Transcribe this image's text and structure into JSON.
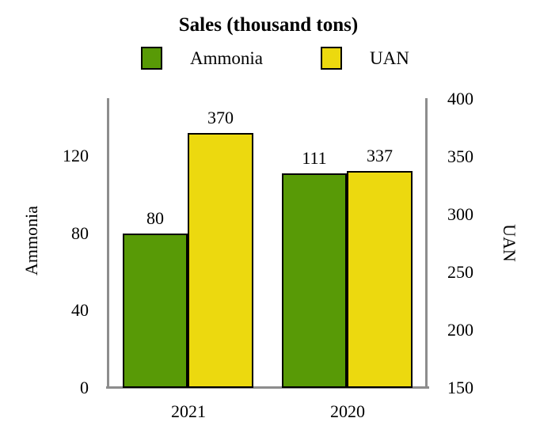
{
  "chart_data": {
    "type": "bar",
    "title": "Sales (thousand tons)",
    "categories": [
      "2021",
      "2020"
    ],
    "series": [
      {
        "name": "Ammonia",
        "axis": "left",
        "color": "#589a06",
        "values": [
          80,
          111
        ]
      },
      {
        "name": "UAN",
        "axis": "right",
        "color": "#ecd90f",
        "values": [
          370,
          337
        ]
      }
    ],
    "left_axis": {
      "label": "Ammonia",
      "range": [
        0,
        150
      ],
      "ticks": [
        0,
        40,
        80,
        120
      ]
    },
    "right_axis": {
      "label": "UAN",
      "range": [
        150,
        400
      ],
      "ticks": [
        150,
        200,
        250,
        300,
        350,
        400
      ]
    },
    "grid": false,
    "legend_position": "top",
    "bar_border_color": "#000000",
    "axis_line_color": "#8d8d8d"
  }
}
